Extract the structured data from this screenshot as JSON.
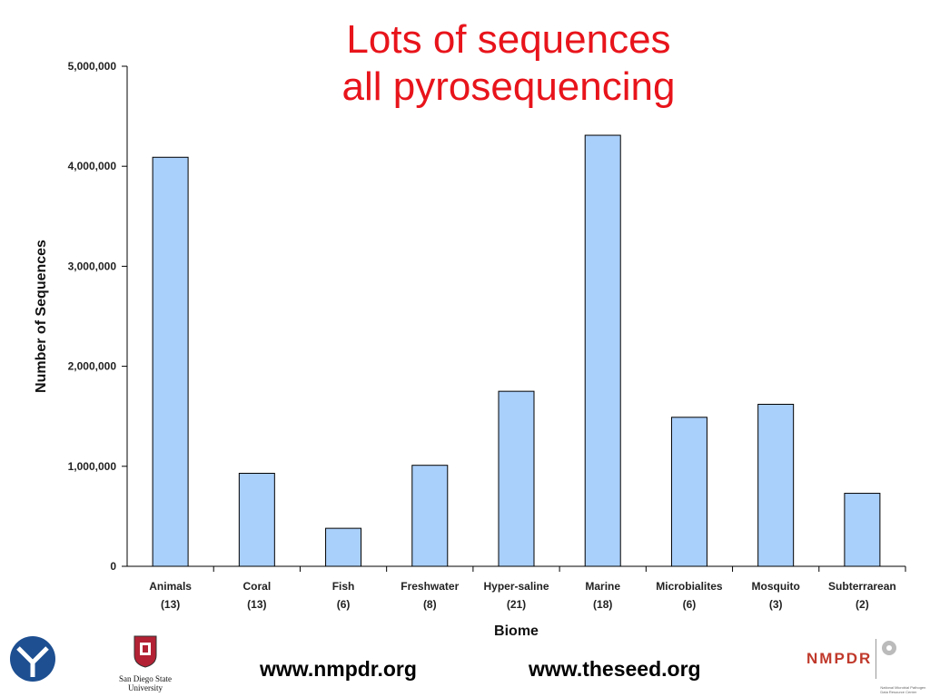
{
  "slide": {
    "title_line1": "Lots of sequences",
    "title_line2": "all pyrosequencing"
  },
  "chart_data": {
    "type": "bar",
    "categories": [
      "Animals",
      "Coral",
      "Fish",
      "Freshwater",
      "Hyper-saline",
      "Marine",
      "Microbialites",
      "Mosquito",
      "Subterrarean"
    ],
    "category_counts": [
      "(13)",
      "(13)",
      "(6)",
      "(8)",
      "(21)",
      "(18)",
      "(6)",
      "(3)",
      "(2)"
    ],
    "values": [
      4090000,
      930000,
      380000,
      1010000,
      1750000,
      4310000,
      1490000,
      1620000,
      730000
    ],
    "xlabel": "Biome",
    "ylabel": "Number of Sequences",
    "ylim": [
      0,
      5000000
    ],
    "yticks": [
      0,
      1000000,
      2000000,
      3000000,
      4000000,
      5000000
    ],
    "ytick_labels": [
      "0",
      "1,000,000",
      "2,000,000",
      "3,000,000",
      "4,000,000",
      "5,000,000"
    ],
    "bar_color": "#a9cffb",
    "grid": false,
    "legend": "none"
  },
  "footer": {
    "link_nmpdr": "www.nmpdr.org",
    "link_seed": "www.theseed.org",
    "sdsu_line1": "San Diego State",
    "sdsu_line2": "University",
    "nmpdr_logo_text": "NMPDR",
    "nmpdr_small_text": "National Microbial Pathogen Data Resource Center"
  },
  "colors": {
    "title": "#e8141b",
    "nmpdr": "#c0392b",
    "left_logo": "#1d4f91"
  }
}
